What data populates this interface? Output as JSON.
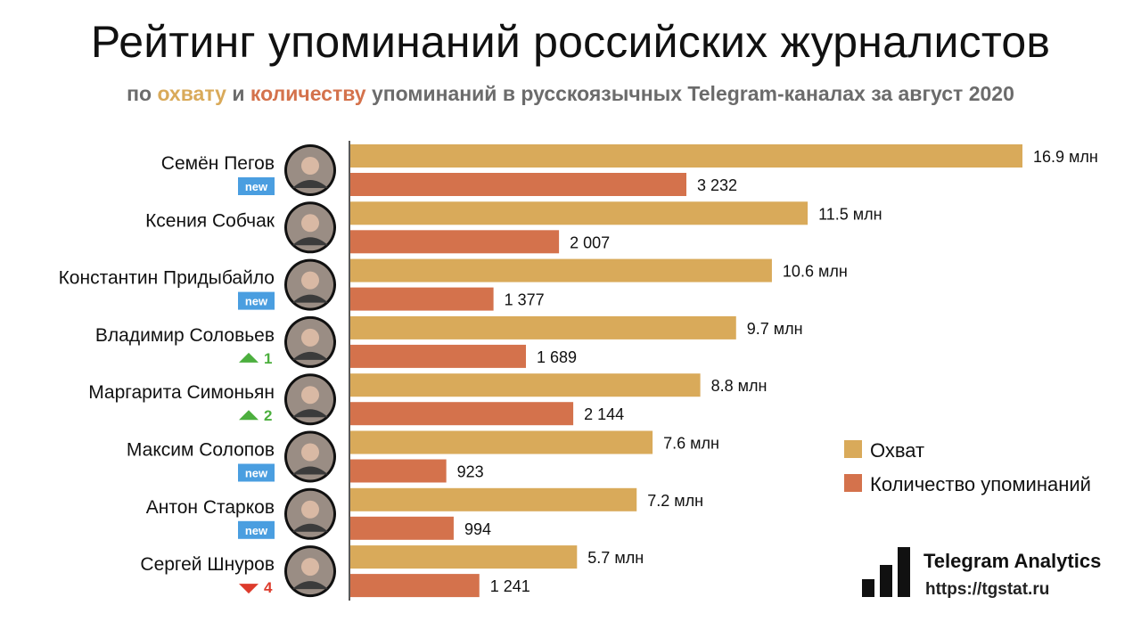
{
  "title": "Рейтинг упоминаний российских журналистов",
  "subtitle": {
    "prefix": "по",
    "reach_word": "охвату",
    "and": "и",
    "count_word": "количеству",
    "suffix": "упоминаний в русскоязычных Telegram-каналах за август 2020"
  },
  "colors": {
    "reach": "#d9aa5a",
    "count": "#d4724c",
    "badge_new": "#4a9ee0",
    "rank_up": "#4caf3e",
    "rank_down": "#dd3b2c"
  },
  "chart_data": {
    "type": "bar",
    "orientation": "horizontal",
    "categories": [
      "Семён Пегов",
      "Ксения Собчак",
      "Константин Придыбайло",
      "Владимир Соловьев",
      "Маргарита Симоньян",
      "Максим Солопов",
      "Антон Старков",
      "Сергей Шнуров"
    ],
    "series": [
      {
        "name": "Охват",
        "values": [
          16.9,
          11.5,
          10.6,
          9.7,
          8.8,
          7.6,
          7.2,
          5.7
        ],
        "labels": [
          "16.9 млн",
          "11.5 млн",
          "10.6 млн",
          "9.7 млн",
          "8.8 млн",
          "7.6 млн",
          "7.2 млн",
          "5.7 млн"
        ]
      },
      {
        "name": "Количество упоминаний",
        "values": [
          3232,
          2007,
          1377,
          1689,
          2144,
          923,
          994,
          1241
        ],
        "labels": [
          "3 232",
          "2 007",
          "1 377",
          "1 689",
          "2 144",
          "923",
          "994",
          "1 241"
        ]
      }
    ],
    "rank_changes": [
      {
        "type": "new",
        "text": "new"
      },
      {
        "type": "none",
        "text": ""
      },
      {
        "type": "new",
        "text": "new"
      },
      {
        "type": "up",
        "text": "1"
      },
      {
        "type": "up",
        "text": "2"
      },
      {
        "type": "new",
        "text": "new"
      },
      {
        "type": "new",
        "text": "new"
      },
      {
        "type": "down",
        "text": "4"
      }
    ],
    "legend": [
      "Охват",
      "Количество упоминаний"
    ],
    "legend_position": "right"
  },
  "brand": {
    "name": "Telegram Analytics",
    "url": "https://tgstat.ru"
  }
}
